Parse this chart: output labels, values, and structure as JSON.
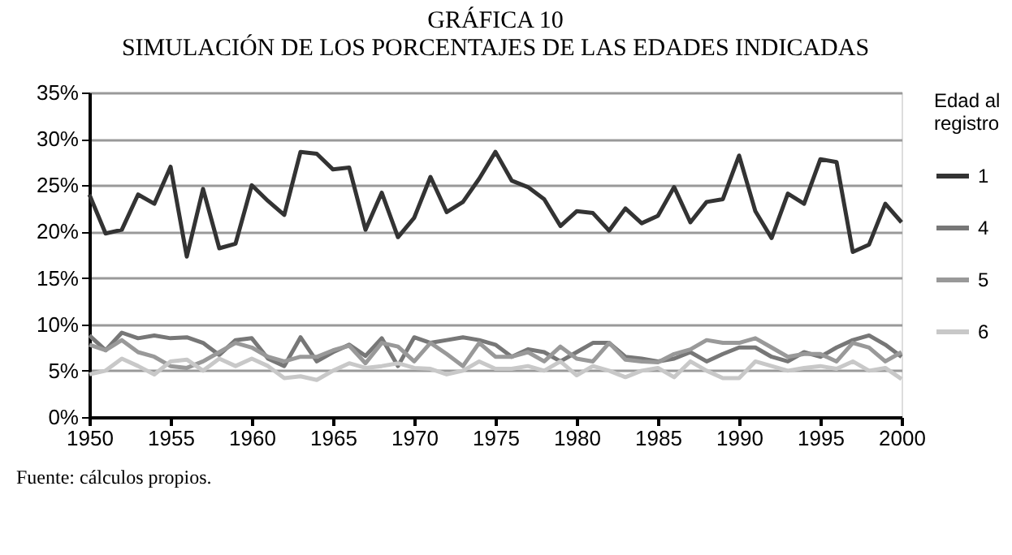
{
  "chart_data": {
    "type": "line",
    "title": "GRÁFICA 10",
    "subtitle": "SIMULACIÓN DE LOS PORCENTAJES  DE LAS EDADES INDICADAS",
    "x": [
      1950,
      1951,
      1952,
      1953,
      1954,
      1955,
      1956,
      1957,
      1958,
      1959,
      1960,
      1961,
      1962,
      1963,
      1964,
      1965,
      1966,
      1967,
      1968,
      1969,
      1970,
      1971,
      1972,
      1973,
      1974,
      1975,
      1976,
      1977,
      1978,
      1979,
      1980,
      1981,
      1982,
      1983,
      1984,
      1985,
      1986,
      1987,
      1988,
      1989,
      1990,
      1991,
      1992,
      1993,
      1994,
      1995,
      1996,
      1997,
      1998,
      1999,
      2000
    ],
    "series": [
      {
        "name": "1",
        "color": "#333333",
        "values": [
          24,
          19.8,
          20.2,
          24,
          23,
          27,
          17.3,
          24.6,
          18.2,
          18.7,
          25,
          23.3,
          21.8,
          28.6,
          28.4,
          26.7,
          26.9,
          20.2,
          24.2,
          19.4,
          21.5,
          25.9,
          22.1,
          23.2,
          25.7,
          28.6,
          25.5,
          24.8,
          23.5,
          20.6,
          22.2,
          22,
          20.1,
          22.5,
          20.9,
          21.7,
          24.8,
          21,
          23.2,
          23.5,
          28.2,
          22.2,
          19.3,
          24.1,
          23,
          27.8,
          27.5,
          17.8,
          18.6,
          23,
          21
        ]
      },
      {
        "name": "4",
        "color": "#777777",
        "values": [
          8.8,
          7.2,
          9.1,
          8.5,
          8.8,
          8.5,
          8.6,
          8,
          6.7,
          8.3,
          8.5,
          6.3,
          5.5,
          8.6,
          6,
          7,
          7.8,
          6.6,
          8.5,
          5.5,
          8.6,
          8,
          8.3,
          8.6,
          8.3,
          7.8,
          6.5,
          7.3,
          7,
          6,
          7,
          8,
          8,
          6.5,
          6.3,
          6,
          6.3,
          7,
          6,
          6.8,
          7.5,
          7.5,
          6.5,
          6,
          7,
          6.5,
          7.5,
          8.3,
          8.8,
          7.8,
          6.5
        ]
      },
      {
        "name": "5",
        "color": "#999999",
        "values": [
          7.8,
          7.2,
          8.3,
          7,
          6.5,
          5.5,
          5.3,
          6,
          7,
          8,
          7.5,
          6.5,
          6,
          6.5,
          6.5,
          7.2,
          7.7,
          5.8,
          8,
          7.6,
          6,
          8,
          6.8,
          5.5,
          8,
          6.5,
          6.5,
          7,
          6,
          7.6,
          6.3,
          6,
          8,
          6.2,
          6,
          5.9,
          6.8,
          7.3,
          8.3,
          8,
          8,
          8.5,
          7.5,
          6.5,
          6.8,
          6.8,
          6,
          8,
          7.5,
          6,
          7
        ]
      },
      {
        "name": "6",
        "color": "#c8c8c8",
        "values": [
          4.6,
          5,
          6.3,
          5.5,
          4.6,
          6,
          6.2,
          5,
          6.3,
          5.5,
          6.3,
          5.5,
          4.2,
          4.4,
          4,
          5,
          5.8,
          5.3,
          5.5,
          5.8,
          5.3,
          5.2,
          4.6,
          5,
          6,
          5.2,
          5.2,
          5.5,
          5,
          6,
          4.5,
          5.5,
          5,
          4.3,
          5,
          5.3,
          4.3,
          6,
          5,
          4.2,
          4.2,
          6,
          5.5,
          5,
          5.3,
          5.5,
          5.2,
          6,
          5,
          5.3,
          4.1
        ]
      }
    ],
    "xlim": [
      1950,
      2000
    ],
    "xticks": [
      1950,
      1955,
      1960,
      1965,
      1970,
      1975,
      1980,
      1985,
      1990,
      1995,
      2000
    ],
    "ylim": [
      0,
      35
    ],
    "yticks": [
      {
        "value": 0,
        "label": "0%"
      },
      {
        "value": 5,
        "label": "5%"
      },
      {
        "value": 10,
        "label": "10%"
      },
      {
        "value": 15,
        "label": "15%"
      },
      {
        "value": 20,
        "label": "20%"
      },
      {
        "value": 25,
        "label": "25%"
      },
      {
        "value": 30,
        "label": "30%"
      },
      {
        "value": 35,
        "label": "35%"
      }
    ],
    "legend_title": "Edad al registro",
    "legend": "top right",
    "grid": "y",
    "marker": "none",
    "line_style": "solid",
    "annotations": [
      "Fuente: cálculos propios."
    ]
  }
}
